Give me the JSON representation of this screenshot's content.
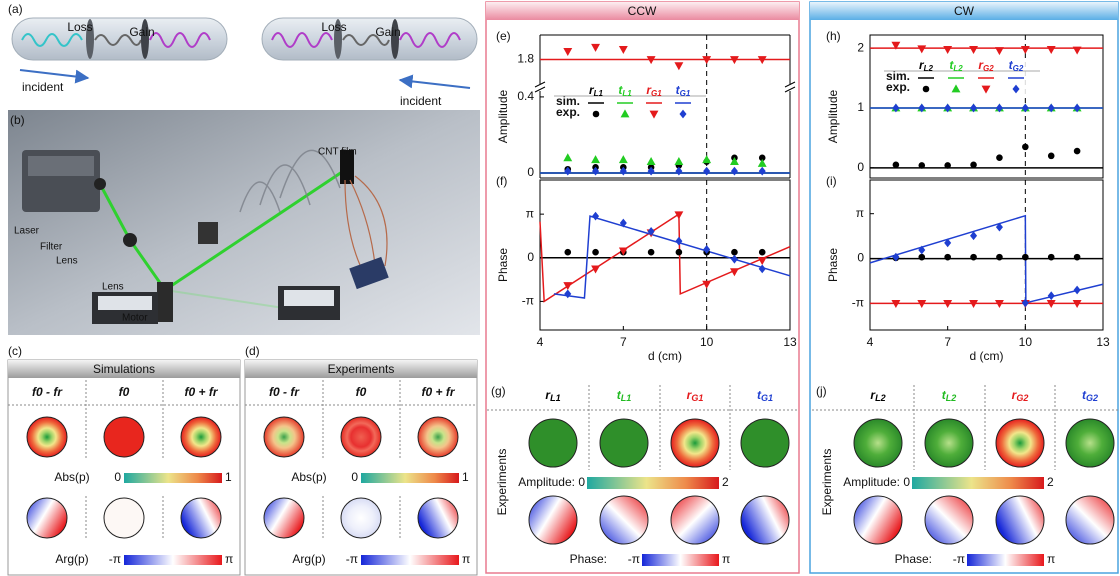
{
  "figure": {
    "a": {
      "label": "(a)",
      "left": {
        "loss": "Loss",
        "gain": "Gain",
        "incident": "incident"
      },
      "right": {
        "loss": "Loss",
        "gain": "Gain",
        "incident": "incident"
      }
    },
    "b": {
      "label": "(b)",
      "cnt": "CNT film",
      "laser": "Laser",
      "filter": "Filter",
      "lens1": "Lens",
      "lens2": "Lens",
      "motor": "Motor"
    },
    "c": {
      "label": "(c)",
      "header": "Simulations",
      "columns": [
        "f0 - fr",
        "f0",
        "f0 + fr"
      ],
      "abs_label": "Abs(p)",
      "abs_min": "0",
      "abs_max": "1",
      "arg_label": "Arg(p)",
      "arg_min": "-π",
      "arg_max": "π"
    },
    "d": {
      "label": "(d)",
      "header": "Experiments",
      "columns": [
        "f0 - fr",
        "f0",
        "f0 + fr"
      ],
      "abs_label": "Abs(p)",
      "abs_min": "0",
      "abs_max": "1",
      "arg_label": "Arg(p)",
      "arg_min": "-π",
      "arg_max": "π"
    },
    "ccw": {
      "header": "CCW"
    },
    "cw": {
      "header": "CW"
    },
    "g": {
      "label": "(g)",
      "side": "Experiments",
      "columns": [
        {
          "name": "r",
          "sub": "L1",
          "color": "#000000"
        },
        {
          "name": "t",
          "sub": "L1",
          "color": "#22bb22"
        },
        {
          "name": "r",
          "sub": "G1",
          "color": "#e41a1c"
        },
        {
          "name": "t",
          "sub": "G1",
          "color": "#1f3fd1"
        }
      ],
      "amp_label": "Amplitude: 0",
      "amp_max": "2",
      "phase_label": "Phase:",
      "phase_min": "-π",
      "phase_max": "π"
    },
    "j": {
      "label": "(j)",
      "side": "Experiments",
      "columns": [
        {
          "name": "r",
          "sub": "L2",
          "color": "#000000"
        },
        {
          "name": "t",
          "sub": "L2",
          "color": "#22bb22"
        },
        {
          "name": "r",
          "sub": "G2",
          "color": "#e41a1c"
        },
        {
          "name": "t",
          "sub": "G2",
          "color": "#1f3fd1"
        }
      ],
      "amp_label": "Amplitude: 0",
      "amp_max": "2",
      "phase_label": "Phase:",
      "phase_min": "-π",
      "phase_max": "π"
    }
  },
  "chart_data": [
    {
      "type": "line",
      "panel": "(e)",
      "ylabel": "Amplitude",
      "xlim": [
        4,
        13
      ],
      "ylim": [
        -0.026,
        0.41
      ],
      "yticks": [
        0,
        0.4
      ],
      "ylim_break": [
        1.7,
        1.92
      ],
      "yticks_break": [
        1.8
      ],
      "vline": 10,
      "legend": {
        "sim": "sim.",
        "exp": "exp."
      },
      "series": [
        {
          "name": "r",
          "sub": "L1",
          "color": "#000000",
          "marker": "circle",
          "x": [
            5,
            6,
            7,
            8,
            9,
            10,
            11,
            12
          ],
          "values": [
            0.02,
            0.03,
            0.03,
            0.03,
            0.04,
            0.06,
            0.08,
            0.08
          ],
          "sim_x": [
            4,
            13
          ],
          "sim_values": [
            0,
            0
          ]
        },
        {
          "name": "t",
          "sub": "L1",
          "color": "#22cc22",
          "marker": "triangle-up",
          "x": [
            5,
            6,
            7,
            8,
            9,
            10,
            11,
            12
          ],
          "values": [
            0.08,
            0.07,
            0.07,
            0.06,
            0.06,
            0.07,
            0.06,
            0.05
          ],
          "sim_x": [
            4,
            13
          ],
          "sim_values": [
            0,
            0
          ]
        },
        {
          "name": "r",
          "sub": "G1",
          "color": "#e41a1c",
          "marker": "triangle-down",
          "x": [
            5,
            6,
            7,
            8,
            9,
            10,
            11,
            12
          ],
          "values": [
            1.84,
            1.86,
            1.85,
            1.8,
            1.77,
            1.8,
            1.8,
            1.8
          ],
          "sim_x": [
            4,
            13
          ],
          "sim_values": [
            1.8,
            1.8
          ]
        },
        {
          "name": "t",
          "sub": "G1",
          "color": "#1f3fd1",
          "marker": "diamond",
          "x": [
            5,
            6,
            7,
            8,
            9,
            10,
            11,
            12
          ],
          "values": [
            0.01,
            0.01,
            0.01,
            0.01,
            0.01,
            0.01,
            0.01,
            0.01
          ],
          "sim_x": [
            4,
            13
          ],
          "sim_values": [
            0,
            0
          ]
        }
      ]
    },
    {
      "type": "line",
      "panel": "(f)",
      "ylabel": "Phase",
      "xlabel": "d (cm)",
      "xlim": [
        4,
        13
      ],
      "xticks": [
        4,
        7,
        10,
        13
      ],
      "ylim": [
        -5.2,
        5.6
      ],
      "yticks": [
        {
          "value": -3.1416,
          "label": "-π"
        },
        0,
        {
          "value": 3.1416,
          "label": "π"
        }
      ],
      "vline": 10,
      "series": [
        {
          "color": "#000000",
          "marker": "circle",
          "x": [
            5,
            6,
            7,
            8,
            9,
            10,
            11,
            12
          ],
          "values": [
            0.4,
            0.4,
            0.4,
            0.4,
            0.4,
            0.4,
            0.4,
            0.4
          ],
          "sim_x": [
            4,
            13
          ],
          "sim_values": [
            0,
            0
          ]
        },
        {
          "color": "#e41a1c",
          "marker": "triangle-down",
          "x": [
            5,
            6,
            7,
            8,
            9,
            10,
            11,
            12
          ],
          "values": [
            -2.0,
            -0.8,
            0.5,
            1.8,
            3.1,
            -1.9,
            -1.0,
            -0.2
          ],
          "sim_x": [
            4,
            4.15,
            9,
            9.05,
            13
          ],
          "sim_values": [
            2.6,
            -3.14,
            3.14,
            -2.6,
            0.8
          ]
        },
        {
          "color": "#1f3fd1",
          "marker": "diamond",
          "x": [
            5,
            6,
            7,
            8,
            9,
            10,
            11,
            12
          ],
          "values": [
            -2.6,
            3.0,
            2.5,
            1.9,
            1.2,
            0.6,
            -0.1,
            -0.8
          ],
          "sim_x": [
            4.5,
            5.6,
            5.8,
            13
          ],
          "sim_values": [
            -2.6,
            -2.9,
            3.0,
            -1.3
          ]
        }
      ]
    },
    {
      "type": "line",
      "panel": "(h)",
      "ylabel": "Amplitude",
      "xlim": [
        4,
        13
      ],
      "ylim": [
        -0.17,
        2.22
      ],
      "yticks": [
        0,
        1,
        2
      ],
      "vline": 10,
      "legend": {
        "sim": "sim.",
        "exp": "exp."
      },
      "series": [
        {
          "name": "r",
          "sub": "L2",
          "color": "#000000",
          "marker": "circle",
          "x": [
            5,
            6,
            7,
            8,
            9,
            10,
            11,
            12
          ],
          "values": [
            0.05,
            0.04,
            0.04,
            0.05,
            0.17,
            0.35,
            0.2,
            0.28
          ],
          "sim_x": [
            4,
            13
          ],
          "sim_values": [
            0,
            0
          ]
        },
        {
          "name": "t",
          "sub": "L2",
          "color": "#22cc22",
          "marker": "triangle-up",
          "x": [
            5,
            6,
            7,
            8,
            9,
            10,
            11,
            12
          ],
          "values": [
            1.0,
            1.0,
            1.0,
            1.0,
            1.0,
            1.0,
            1.0,
            1.0
          ],
          "sim_x": [
            4,
            13
          ],
          "sim_values": [
            1,
            1
          ]
        },
        {
          "name": "r",
          "sub": "G2",
          "color": "#e41a1c",
          "marker": "triangle-down",
          "x": [
            5,
            6,
            7,
            8,
            9,
            10,
            11,
            12
          ],
          "values": [
            2.05,
            1.99,
            1.98,
            1.98,
            1.96,
            1.98,
            1.98,
            1.97
          ],
          "sim_x": [
            4,
            13
          ],
          "sim_values": [
            2,
            2
          ]
        },
        {
          "name": "t",
          "sub": "G2",
          "color": "#1f3fd1",
          "marker": "diamond",
          "x": [
            5,
            6,
            7,
            8,
            9,
            10,
            11,
            12
          ],
          "values": [
            1.0,
            1.0,
            1.0,
            1.0,
            1.0,
            1.0,
            1.0,
            1.0
          ],
          "sim_x": [
            4,
            13
          ],
          "sim_values": [
            1,
            1
          ]
        }
      ]
    },
    {
      "type": "line",
      "panel": "(i)",
      "ylabel": "Phase",
      "xlabel": "d (cm)",
      "xlim": [
        4,
        13
      ],
      "xticks": [
        4,
        7,
        10,
        13
      ],
      "ylim": [
        -5.0,
        5.5
      ],
      "yticks": [
        {
          "value": -3.1416,
          "label": "-π"
        },
        0,
        {
          "value": 3.1416,
          "label": "π"
        }
      ],
      "vline": 10,
      "series": [
        {
          "color": "#000000",
          "marker": "circle",
          "x": [
            5,
            6,
            7,
            8,
            9,
            10,
            11,
            12
          ],
          "values": [
            0.05,
            0.1,
            0.1,
            0.1,
            0.1,
            0.1,
            0.1,
            0.1
          ],
          "sim_x": [
            4,
            13
          ],
          "sim_values": [
            0,
            0
          ]
        },
        {
          "color": "#e41a1c",
          "marker": "triangle-down",
          "x": [
            5,
            6,
            7,
            8,
            9,
            10,
            11,
            12
          ],
          "values": [
            -3.14,
            -3.14,
            -3.14,
            -3.14,
            -3.14,
            -3.14,
            -3.14,
            -3.14
          ],
          "sim_x": [
            4,
            13
          ],
          "sim_values": [
            -3.14,
            -3.14
          ]
        },
        {
          "color": "#1f3fd1",
          "marker": "diamond",
          "x": [
            5,
            6,
            7,
            8,
            9,
            10,
            11,
            12
          ],
          "values": [
            0.1,
            0.6,
            1.1,
            1.6,
            2.2,
            -3.1,
            -2.6,
            -2.2
          ],
          "sim_x": [
            4,
            10,
            10.02,
            13
          ],
          "sim_values": [
            -0.3,
            3.0,
            -3.1,
            -1.8
          ]
        }
      ]
    }
  ]
}
